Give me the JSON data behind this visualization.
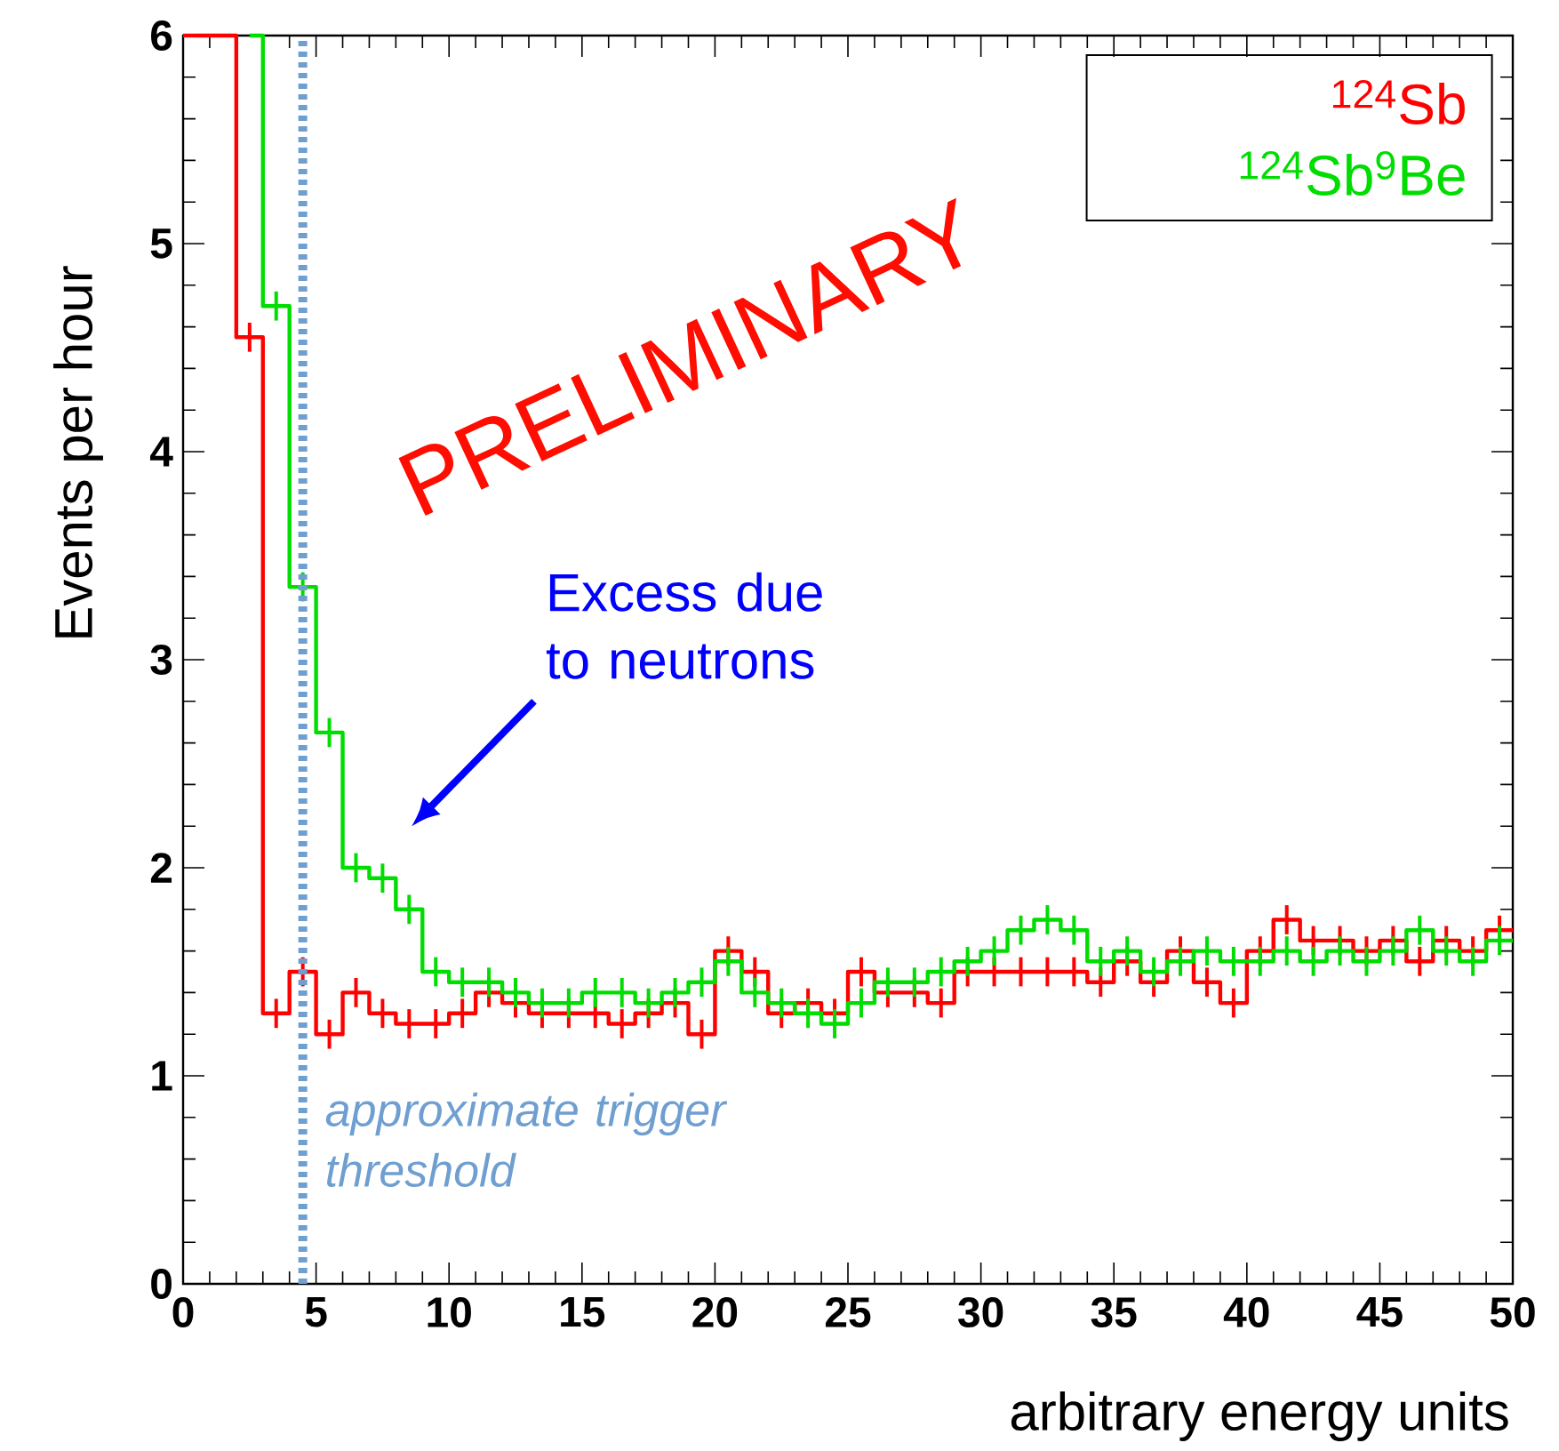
{
  "chart_data": {
    "type": "step",
    "xlabel": "arbitrary energy units",
    "ylabel": "Events per hour",
    "x": [
      0.5,
      1.5,
      2.5,
      3.5,
      4.5,
      5.5,
      6.5,
      7.5,
      8.5,
      9.5,
      10.5,
      11.5,
      12.5,
      13.5,
      14.5,
      15.5,
      16.5,
      17.5,
      18.5,
      19.5,
      20.5,
      21.5,
      22.5,
      23.5,
      24.5,
      25.5,
      26.5,
      27.5,
      28.5,
      29.5,
      30.5,
      31.5,
      32.5,
      33.5,
      34.5,
      35.5,
      36.5,
      37.5,
      38.5,
      39.5,
      40.5,
      41.5,
      42.5,
      43.5,
      44.5,
      45.5,
      46.5,
      47.5,
      48.5,
      49.5
    ],
    "series": [
      {
        "name": "$^{124}$Sb",
        "color": "#ff0000",
        "values": [
          6,
          6,
          4.55,
          1.3,
          1.5,
          1.2,
          1.4,
          1.3,
          1.25,
          1.25,
          1.3,
          1.4,
          1.35,
          1.3,
          1.3,
          1.3,
          1.25,
          1.3,
          1.35,
          1.2,
          1.6,
          1.5,
          1.3,
          1.35,
          1.3,
          1.5,
          1.4,
          1.4,
          1.35,
          1.5,
          1.5,
          1.5,
          1.5,
          1.5,
          1.45,
          1.55,
          1.45,
          1.6,
          1.45,
          1.35,
          1.6,
          1.75,
          1.65,
          1.65,
          1.6,
          1.65,
          1.55,
          1.65,
          1.6,
          1.7
        ],
        "errors": [
          null,
          null,
          0.07,
          0.07,
          0.07,
          0.07,
          0.07,
          0.07,
          0.07,
          0.07,
          0.07,
          0.07,
          0.07,
          0.07,
          0.07,
          0.07,
          0.07,
          0.07,
          0.07,
          0.07,
          0.07,
          0.07,
          0.07,
          0.07,
          0.07,
          0.07,
          0.07,
          0.07,
          0.07,
          0.07,
          0.07,
          0.07,
          0.07,
          0.07,
          0.07,
          0.07,
          0.07,
          0.07,
          0.07,
          0.07,
          0.07,
          0.07,
          0.07,
          0.07,
          0.07,
          0.07,
          0.07,
          0.07,
          0.07,
          0.07
        ]
      },
      {
        "name": "$^{124}$Sb$^{9}$Be",
        "color": "#00dd00",
        "values": [
          null,
          null,
          6,
          4.7,
          3.35,
          2.65,
          2.0,
          1.95,
          1.8,
          1.5,
          1.45,
          1.45,
          1.4,
          1.35,
          1.35,
          1.4,
          1.4,
          1.35,
          1.4,
          1.45,
          1.55,
          1.4,
          1.35,
          1.3,
          1.25,
          1.35,
          1.45,
          1.45,
          1.5,
          1.55,
          1.6,
          1.7,
          1.75,
          1.7,
          1.55,
          1.6,
          1.5,
          1.55,
          1.6,
          1.55,
          1.55,
          1.6,
          1.55,
          1.6,
          1.55,
          1.6,
          1.7,
          1.6,
          1.55,
          1.65
        ],
        "errors": [
          null,
          null,
          null,
          0.07,
          0.07,
          0.07,
          0.07,
          0.07,
          0.07,
          0.07,
          0.07,
          0.07,
          0.07,
          0.07,
          0.07,
          0.07,
          0.07,
          0.07,
          0.07,
          0.07,
          0.07,
          0.07,
          0.07,
          0.07,
          0.07,
          0.07,
          0.07,
          0.07,
          0.07,
          0.07,
          0.07,
          0.07,
          0.07,
          0.07,
          0.07,
          0.07,
          0.07,
          0.07,
          0.07,
          0.07,
          0.07,
          0.07,
          0.07,
          0.07,
          0.07,
          0.07,
          0.07,
          0.07,
          0.07,
          0.07
        ]
      }
    ],
    "xlim": [
      0,
      50
    ],
    "ylim": [
      0,
      6
    ],
    "xticks": [
      0,
      5,
      10,
      15,
      20,
      25,
      30,
      35,
      40,
      45,
      50
    ],
    "yticks": [
      0,
      1,
      2,
      3,
      4,
      5,
      6
    ],
    "legend": "top right",
    "grid": false,
    "ref_lines": [
      {
        "axis": "x",
        "value": 4.5,
        "label": "*approximate trigger threshold*",
        "color": "#6f9fd0",
        "line_style": "dotted"
      }
    ],
    "annotations": [
      "PRELIMINARY",
      "Excess due to neutrons"
    ]
  }
}
